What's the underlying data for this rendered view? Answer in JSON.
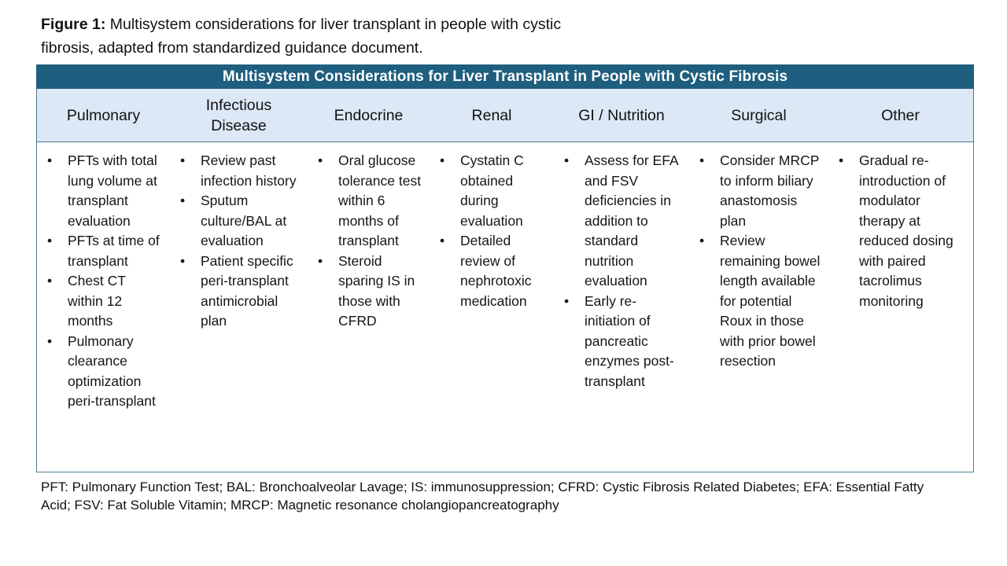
{
  "figure": {
    "label": "Figure 1:",
    "caption": " Multisystem considerations for liver transplant in people with cystic fibrosis, adapted from standardized guidance document."
  },
  "table": {
    "title": "Multisystem Considerations for Liver Transplant in People with Cystic Fibrosis",
    "columns": [
      {
        "header": "Pulmonary",
        "items": [
          "PFTs with total lung volume at transplant evaluation",
          "PFTs at time of transplant",
          "Chest CT within 12 months",
          "Pulmonary clearance optimization peri-transplant"
        ]
      },
      {
        "header": "Infectious Disease",
        "items": [
          "Review past infection history",
          "Sputum culture/BAL at evaluation",
          "Patient specific peri-transplant antimicrobial plan"
        ]
      },
      {
        "header": "Endocrine",
        "items": [
          "Oral glucose tolerance test within 6 months of transplant",
          "Steroid sparing IS in those with CFRD"
        ]
      },
      {
        "header": "Renal",
        "items": [
          "Cystatin C obtained during evaluation",
          "Detailed review of nephrotoxic medication"
        ]
      },
      {
        "header": "GI / Nutrition",
        "items": [
          "Assess for EFA and FSV deficiencies in addition to standard nutrition evaluation",
          "Early re-initiation of pancreatic enzymes post-transplant"
        ]
      },
      {
        "header": "Surgical",
        "items": [
          "Consider MRCP to inform biliary anastomosis plan",
          "Review remaining bowel length available for potential Roux in those with prior bowel resection"
        ]
      },
      {
        "header": "Other",
        "items": [
          "Gradual re-introduction of modulator therapy at reduced dosing with paired tacrolimus monitoring"
        ]
      }
    ]
  },
  "footnote": "PFT: Pulmonary Function Test; BAL: Bronchoalveolar Lavage; IS: immunosuppression; CFRD: Cystic Fibrosis Related Diabetes; EFA: Essential Fatty Acid; FSV: Fat Soluble Vitamin; MRCP: Magnetic resonance cholangiopancreatography",
  "colors": {
    "title_bar_bg": "#1E5E7E",
    "header_row_bg": "#DCE8F5",
    "table_border": "#4E7D94",
    "title_text": "#FFFFFF",
    "body_text": "#151515"
  }
}
